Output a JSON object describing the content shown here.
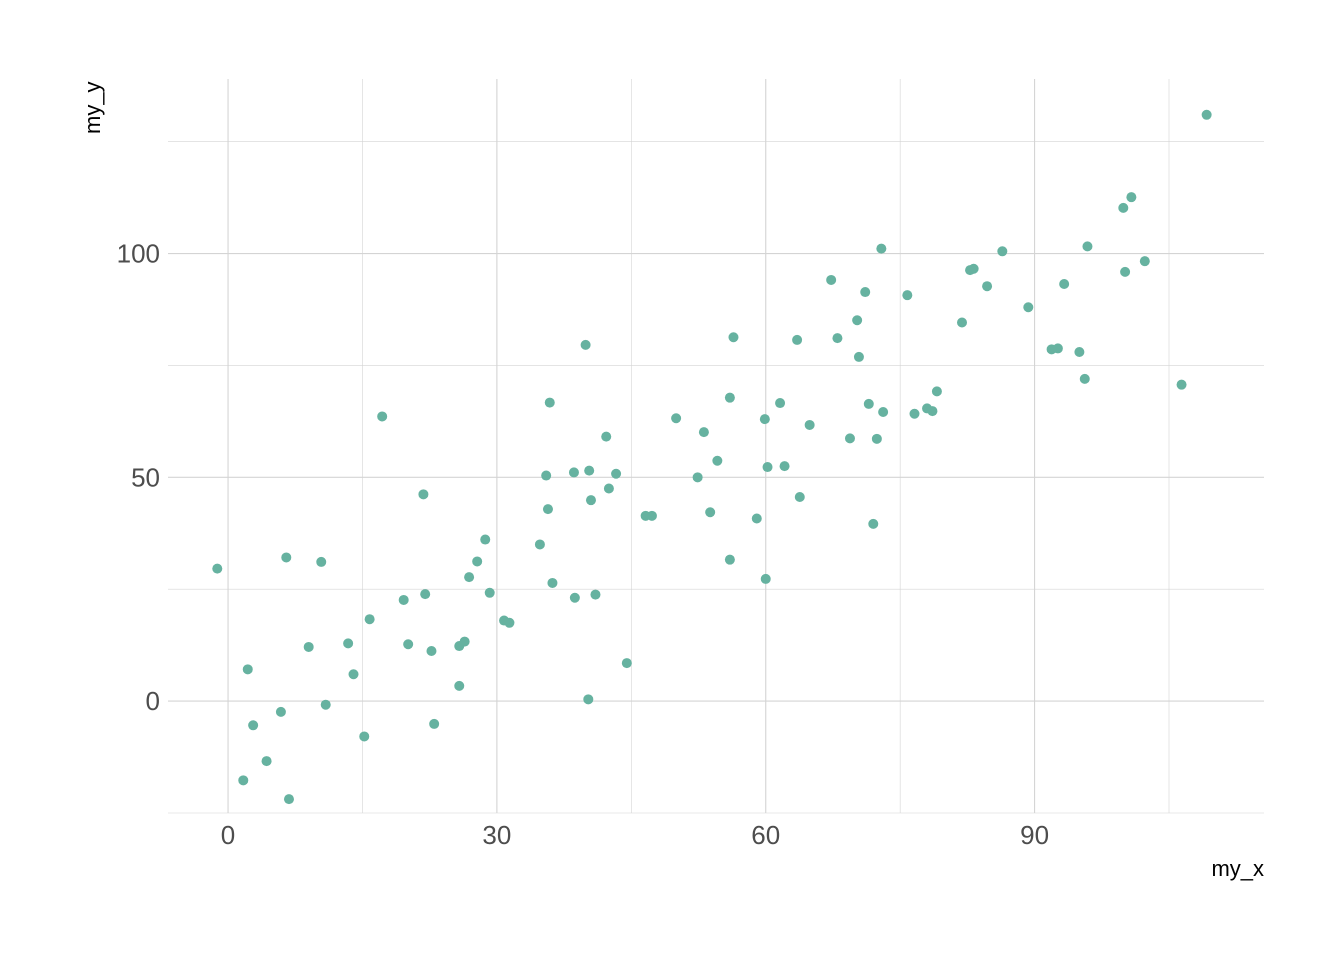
{
  "chart_data": {
    "type": "scatter",
    "title": "",
    "xlabel": "my_x",
    "ylabel": "my_y",
    "xlim": [
      -6.7,
      115.6
    ],
    "ylim": [
      -25,
      139
    ],
    "x_ticks": [
      0,
      30,
      60,
      90
    ],
    "y_ticks": [
      0,
      50,
      100
    ],
    "x_minor_ticks": [
      15,
      45,
      75,
      105
    ],
    "y_minor_ticks": [
      -25,
      25,
      75,
      125
    ],
    "grid": true,
    "legend": "none",
    "point_color": "#66b2a0",
    "points": [
      [
        -1.2,
        29.6
      ],
      [
        1.7,
        -17.7
      ],
      [
        2.2,
        7.1
      ],
      [
        2.8,
        -5.4
      ],
      [
        4.3,
        -13.4
      ],
      [
        5.9,
        -2.4
      ],
      [
        6.5,
        32.1
      ],
      [
        6.8,
        -21.9
      ],
      [
        9.0,
        12.1
      ],
      [
        10.4,
        31.1
      ],
      [
        10.9,
        -0.8
      ],
      [
        13.4,
        12.9
      ],
      [
        14.0,
        6.0
      ],
      [
        15.2,
        -7.9
      ],
      [
        15.8,
        18.3
      ],
      [
        17.2,
        63.6
      ],
      [
        19.6,
        22.6
      ],
      [
        20.1,
        12.7
      ],
      [
        21.8,
        46.2
      ],
      [
        22.0,
        23.9
      ],
      [
        22.7,
        11.2
      ],
      [
        23.0,
        -5.1
      ],
      [
        25.8,
        3.4
      ],
      [
        25.8,
        12.3
      ],
      [
        26.4,
        13.3
      ],
      [
        26.9,
        27.7
      ],
      [
        27.8,
        31.2
      ],
      [
        28.7,
        36.1
      ],
      [
        29.2,
        24.2
      ],
      [
        30.8,
        18.0
      ],
      [
        31.4,
        17.5
      ],
      [
        34.8,
        35.0
      ],
      [
        35.5,
        50.4
      ],
      [
        35.7,
        42.9
      ],
      [
        35.9,
        66.7
      ],
      [
        36.2,
        26.4
      ],
      [
        38.6,
        51.1
      ],
      [
        38.7,
        23.1
      ],
      [
        39.9,
        79.6
      ],
      [
        40.3,
        51.5
      ],
      [
        40.2,
        0.4
      ],
      [
        40.5,
        44.9
      ],
      [
        41.0,
        23.8
      ],
      [
        42.2,
        59.1
      ],
      [
        42.5,
        47.5
      ],
      [
        43.3,
        50.8
      ],
      [
        44.5,
        8.5
      ],
      [
        46.6,
        41.4
      ],
      [
        47.3,
        41.4
      ],
      [
        50.0,
        63.2
      ],
      [
        52.4,
        50.0
      ],
      [
        53.1,
        60.1
      ],
      [
        53.8,
        42.2
      ],
      [
        54.6,
        53.7
      ],
      [
        56.0,
        67.8
      ],
      [
        56.0,
        31.6
      ],
      [
        56.4,
        81.3
      ],
      [
        59.0,
        40.8
      ],
      [
        59.9,
        63.0
      ],
      [
        60.0,
        27.3
      ],
      [
        60.2,
        52.3
      ],
      [
        61.6,
        66.6
      ],
      [
        62.1,
        52.5
      ],
      [
        63.5,
        80.7
      ],
      [
        63.8,
        45.6
      ],
      [
        64.9,
        61.7
      ],
      [
        67.3,
        94.1
      ],
      [
        68.0,
        81.1
      ],
      [
        69.4,
        58.7
      ],
      [
        70.2,
        85.1
      ],
      [
        70.4,
        76.9
      ],
      [
        71.1,
        91.4
      ],
      [
        71.5,
        66.4
      ],
      [
        72.0,
        39.6
      ],
      [
        72.4,
        58.6
      ],
      [
        72.9,
        101.1
      ],
      [
        73.1,
        64.6
      ],
      [
        75.8,
        90.7
      ],
      [
        76.6,
        64.2
      ],
      [
        78.0,
        65.4
      ],
      [
        78.6,
        64.8
      ],
      [
        79.1,
        69.2
      ],
      [
        81.9,
        84.6
      ],
      [
        82.8,
        96.3
      ],
      [
        83.2,
        96.6
      ],
      [
        84.7,
        92.7
      ],
      [
        86.4,
        100.5
      ],
      [
        89.3,
        88.0
      ],
      [
        91.9,
        78.6
      ],
      [
        92.6,
        78.8
      ],
      [
        93.3,
        93.2
      ],
      [
        95.0,
        78.0
      ],
      [
        95.6,
        72.0
      ],
      [
        95.9,
        101.6
      ],
      [
        99.9,
        110.2
      ],
      [
        100.1,
        95.9
      ],
      [
        100.8,
        112.6
      ],
      [
        102.3,
        98.3
      ],
      [
        106.4,
        70.7
      ],
      [
        109.2,
        131.0
      ]
    ]
  }
}
